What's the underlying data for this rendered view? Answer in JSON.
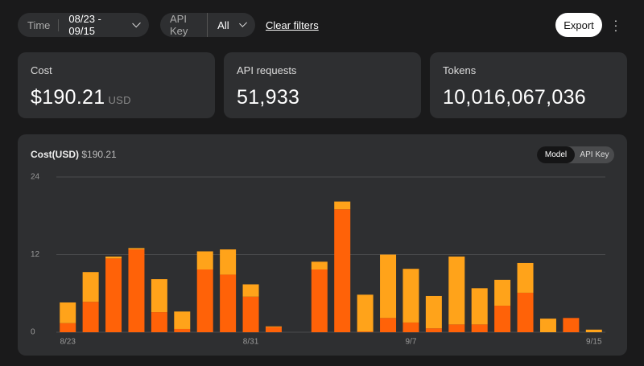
{
  "filters": {
    "time_label": "Time",
    "time_value": "08/23 - 09/15",
    "key_label": "API Key",
    "key_value": "All",
    "clear": "Clear filters"
  },
  "export": "Export",
  "cards": [
    {
      "label": "Cost",
      "value": "$190.21",
      "unit": "USD"
    },
    {
      "label": "API requests",
      "value": "51,933"
    },
    {
      "label": "Tokens",
      "value": "10,016,067,036"
    }
  ],
  "toggle": [
    "Model",
    "API Key"
  ],
  "chart_data": {
    "type": "bar",
    "stacked": true,
    "title": "Cost(USD)",
    "subtitle": "$190.21",
    "categories": [
      "8/23",
      null,
      null,
      null,
      null,
      null,
      null,
      null,
      "8/31",
      null,
      null,
      null,
      null,
      null,
      null,
      "9/7",
      null,
      null,
      null,
      null,
      null,
      null,
      null,
      "9/15"
    ],
    "series": [
      {
        "color": "#ff6208",
        "values": [
          1.4,
          4.7,
          11.4,
          12.8,
          3.1,
          0.5,
          9.7,
          8.9,
          5.5,
          0.8,
          0,
          9.7,
          19.0,
          0.1,
          2.2,
          1.5,
          0.6,
          1.2,
          1.2,
          4.1,
          6.1,
          0,
          2.2,
          0
        ]
      },
      {
        "color": "#ffa31a",
        "values": [
          3.2,
          4.6,
          0.3,
          0.2,
          5.1,
          2.7,
          2.8,
          3.9,
          1.9,
          0.1,
          0,
          1.2,
          1.2,
          5.7,
          9.8,
          8.3,
          5.0,
          10.5,
          5.6,
          4.0,
          4.6,
          2.1,
          0,
          0.4
        ]
      }
    ],
    "ylim": [
      0,
      24
    ],
    "yticks": [
      0,
      12,
      24
    ],
    "grid": true
  }
}
